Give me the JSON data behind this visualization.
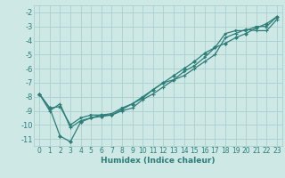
{
  "xlabel": "Humidex (Indice chaleur)",
  "ylabel": "",
  "bg_color": "#cde8e5",
  "grid_color": "#aacfcc",
  "line_color": "#2d7d78",
  "xlim": [
    -0.5,
    23.5
  ],
  "ylim": [
    -11.5,
    -1.5
  ],
  "xticks": [
    0,
    1,
    2,
    3,
    4,
    5,
    6,
    7,
    8,
    9,
    10,
    11,
    12,
    13,
    14,
    15,
    16,
    17,
    18,
    19,
    20,
    21,
    22,
    23
  ],
  "yticks": [
    -2,
    -3,
    -4,
    -5,
    -6,
    -7,
    -8,
    -9,
    -10,
    -11
  ],
  "series1_x": [
    0,
    1,
    2,
    3,
    4,
    5,
    6,
    7,
    8,
    9,
    10,
    11,
    12,
    13,
    14,
    15,
    16,
    17,
    18,
    19,
    20,
    21,
    22,
    23
  ],
  "series1_y": [
    -7.8,
    -8.8,
    -8.7,
    -10.0,
    -9.5,
    -9.3,
    -9.3,
    -9.2,
    -8.8,
    -8.5,
    -8.0,
    -7.5,
    -7.0,
    -6.8,
    -6.2,
    -5.8,
    -5.2,
    -4.5,
    -3.5,
    -3.3,
    -3.3,
    -3.0,
    -3.0,
    -2.3
  ],
  "series2_x": [
    0,
    1,
    2,
    3,
    4,
    5,
    6,
    7,
    8,
    9,
    10,
    11,
    12,
    13,
    14,
    15,
    16,
    17,
    18,
    19,
    20,
    21,
    22,
    23
  ],
  "series2_y": [
    -7.8,
    -8.8,
    -10.8,
    -11.2,
    -9.8,
    -9.5,
    -9.4,
    -9.3,
    -8.9,
    -8.5,
    -8.1,
    -7.5,
    -7.0,
    -6.5,
    -6.0,
    -5.5,
    -4.9,
    -4.5,
    -4.2,
    -3.8,
    -3.5,
    -3.1,
    -2.8,
    -2.3
  ],
  "series3_x": [
    0,
    1,
    2,
    3,
    4,
    5,
    6,
    7,
    8,
    9,
    10,
    11,
    12,
    13,
    14,
    15,
    16,
    17,
    18,
    19,
    20,
    21,
    22,
    23
  ],
  "series3_y": [
    -7.8,
    -9.0,
    -8.5,
    -10.2,
    -9.7,
    -9.5,
    -9.3,
    -9.3,
    -9.0,
    -8.8,
    -8.2,
    -7.8,
    -7.3,
    -6.8,
    -6.5,
    -6.0,
    -5.5,
    -5.0,
    -3.8,
    -3.5,
    -3.2,
    -3.3,
    -3.3,
    -2.5
  ],
  "tick_fontsize": 5.5,
  "xlabel_fontsize": 6.5,
  "lw": 0.9,
  "ms": 2.0
}
